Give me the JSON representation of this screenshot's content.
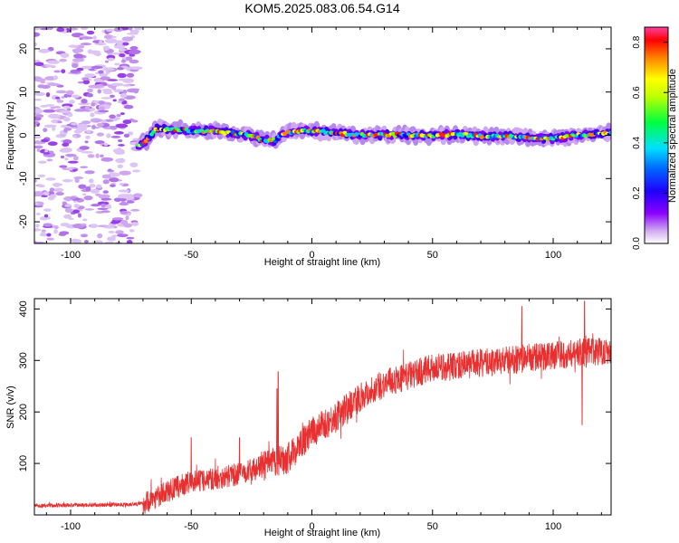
{
  "title": "KOM5.2025.083.06.54.G14",
  "chart_data": [
    {
      "type": "heatmap",
      "xlabel": "Height of straight line (km)",
      "ylabel": "Frequency (Hz)",
      "xlim": [
        -115,
        124
      ],
      "ylim": [
        -25,
        25
      ],
      "xticks": [
        -100,
        -50,
        0,
        50,
        100
      ],
      "yticks": [
        -20,
        -10,
        0,
        10,
        20
      ],
      "colorbar": {
        "label": "Normalized spectral amplitude",
        "range": [
          0.0,
          0.86
        ],
        "ticks": [
          0.0,
          0.2,
          0.4,
          0.6,
          0.8
        ],
        "colormap": [
          "#ffffff",
          "#cfa8f0",
          "#8a00ff",
          "#0000ff",
          "#00e0ff",
          "#00ff40",
          "#ffff00",
          "#ff8000",
          "#ff0000",
          "#ff40a0"
        ]
      },
      "noise_region_x": [
        -115,
        -72
      ],
      "ridge": {
        "x": [
          -72,
          -68,
          -65,
          -60,
          -50,
          -40,
          -30,
          -25,
          -20,
          -15,
          -12,
          -5,
          0,
          10,
          20,
          30,
          40,
          50,
          60,
          70,
          80,
          90,
          100,
          110,
          124
        ],
        "y": [
          -2.5,
          -1.0,
          1.5,
          1.5,
          1.0,
          1.0,
          0.2,
          0.0,
          -1.2,
          -1.2,
          0.5,
          1.0,
          1.0,
          0.5,
          0.0,
          0.2,
          0.0,
          0.0,
          0.2,
          -0.2,
          -0.3,
          -0.5,
          -0.8,
          0.0,
          0.5
        ]
      }
    },
    {
      "type": "line",
      "xlabel": "Height of straight line (km)",
      "ylabel": "SNR (v/v)",
      "xlim": [
        -115,
        124
      ],
      "ylim": [
        0,
        420
      ],
      "xticks": [
        -100,
        -50,
        0,
        50,
        100
      ],
      "yticks": [
        100,
        200,
        300,
        400
      ],
      "color": "#e83030",
      "trend": {
        "x": [
          -115,
          -80,
          -70,
          -60,
          -50,
          -40,
          -30,
          -20,
          -10,
          0,
          10,
          20,
          30,
          40,
          50,
          60,
          70,
          80,
          90,
          100,
          110,
          124
        ],
        "y": [
          18,
          20,
          22,
          45,
          65,
          70,
          80,
          95,
          110,
          160,
          190,
          230,
          255,
          270,
          285,
          290,
          295,
          300,
          305,
          310,
          315,
          320
        ]
      },
      "spikes": [
        {
          "x": -14,
          "y": 278
        },
        {
          "x": -14.5,
          "y": 245
        },
        {
          "x": -50,
          "y": 150
        },
        {
          "x": -30,
          "y": 150
        },
        {
          "x": 87,
          "y": 405
        },
        {
          "x": 113,
          "y": 415
        },
        {
          "x": 112,
          "y": 175
        }
      ]
    }
  ]
}
